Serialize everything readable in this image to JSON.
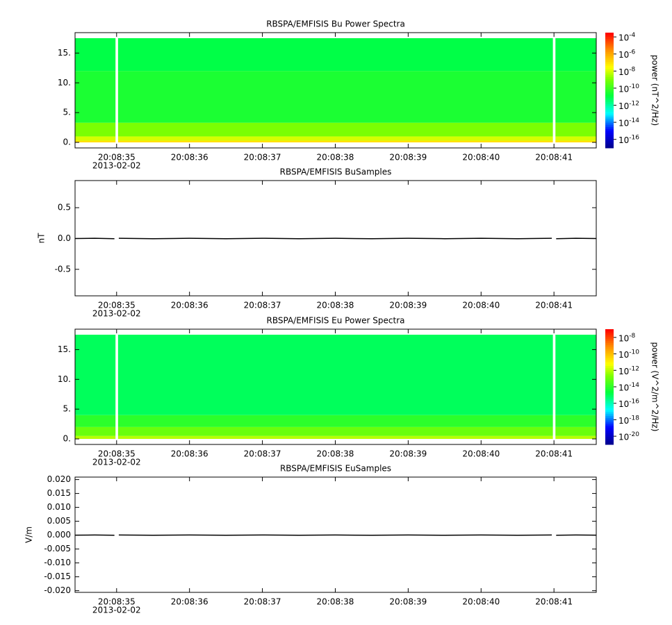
{
  "chart_data": [
    {
      "type": "spectrogram",
      "title": "RBSPA/EMFISIS  Bu Power Spectra",
      "xlim": [
        34.43,
        41.58
      ],
      "xticks": [
        {
          "value": 35,
          "label": "20:08:35"
        },
        {
          "value": 36,
          "label": "20:08:36"
        },
        {
          "value": 37,
          "label": "20:08:37"
        },
        {
          "value": 38,
          "label": "20:08:38"
        },
        {
          "value": 39,
          "label": "20:08:39"
        },
        {
          "value": 40,
          "label": "20:08:40"
        },
        {
          "value": 41,
          "label": "20:08:41"
        }
      ],
      "date_label": "2013-02-02",
      "ylim": [
        -0.93,
        18.43
      ],
      "yticks": [
        {
          "value": 0,
          "label": "0."
        },
        {
          "value": 5,
          "label": "5."
        },
        {
          "value": 10,
          "label": "10."
        },
        {
          "value": 15,
          "label": "15."
        }
      ],
      "freq_bins": [
        0,
        0.3,
        1,
        3.3,
        12,
        17.5
      ],
      "log_power": [
        -7,
        -8,
        -9,
        -10.5,
        -11
      ],
      "gaps": [
        [
          34.985,
          35.02
        ],
        [
          40.985,
          41.02
        ]
      ],
      "zlim": [
        -17,
        -3.5
      ],
      "zticks": [
        {
          "value": -4,
          "label": "10^-4"
        },
        {
          "value": -6,
          "label": "10^-6"
        },
        {
          "value": -8,
          "label": "10^-8"
        },
        {
          "value": -10,
          "label": "10^-10"
        },
        {
          "value": -12,
          "label": "10^-12"
        },
        {
          "value": -14,
          "label": "10^-14"
        },
        {
          "value": -16,
          "label": "10^-16"
        }
      ],
      "colorbar_label": "power (nT^2/Hz)"
    },
    {
      "type": "line",
      "title": "RBSPA/EMFISIS  BuSamples",
      "ylabel": "nT",
      "xlim": [
        34.43,
        41.58
      ],
      "xticks": [
        {
          "value": 35,
          "label": "20:08:35"
        },
        {
          "value": 36,
          "label": "20:08:36"
        },
        {
          "value": 37,
          "label": "20:08:37"
        },
        {
          "value": 38,
          "label": "20:08:38"
        },
        {
          "value": 39,
          "label": "20:08:39"
        },
        {
          "value": 40,
          "label": "20:08:40"
        },
        {
          "value": 41,
          "label": "20:08:41"
        }
      ],
      "date_label": "2013-02-02",
      "ylim": [
        -0.93,
        0.94
      ],
      "yticks": [
        0.5,
        {
          "value": 0,
          "label": "0.0"
        },
        -0.5
      ],
      "series": [
        {
          "color": "#000000",
          "x": [
            34.43,
            34.7,
            34.97,
            35.0,
            35.03,
            35.5,
            36,
            36.5,
            37,
            37.5,
            38,
            38.5,
            39,
            39.5,
            40,
            40.5,
            40.97,
            41.0,
            41.03,
            41.3,
            41.58
          ],
          "values": [
            0,
            0.004,
            -0.003,
            null,
            0.003,
            -0.004,
            0.003,
            -0.003,
            0.004,
            -0.003,
            0.003,
            -0.004,
            0.003,
            -0.003,
            0.004,
            -0.003,
            0.003,
            null,
            -0.003,
            0.003,
            0
          ]
        }
      ]
    },
    {
      "type": "spectrogram",
      "title": "RBSPA/EMFISIS  Eu Power Spectra",
      "xlim": [
        34.43,
        41.58
      ],
      "xticks": [
        {
          "value": 35,
          "label": "20:08:35"
        },
        {
          "value": 36,
          "label": "20:08:36"
        },
        {
          "value": 37,
          "label": "20:08:37"
        },
        {
          "value": 38,
          "label": "20:08:38"
        },
        {
          "value": 39,
          "label": "20:08:39"
        },
        {
          "value": 40,
          "label": "20:08:40"
        },
        {
          "value": 41,
          "label": "20:08:41"
        }
      ],
      "date_label": "2013-02-02",
      "ylim": [
        -0.93,
        18.43
      ],
      "yticks": [
        {
          "value": 0,
          "label": "0."
        },
        {
          "value": 5,
          "label": "5."
        },
        {
          "value": 10,
          "label": "10."
        },
        {
          "value": 15,
          "label": "15."
        }
      ],
      "freq_bins": [
        0,
        0.5,
        2,
        4,
        17.5
      ],
      "log_power": [
        -12,
        -13,
        -14,
        -15
      ],
      "gaps": [
        [
          34.985,
          35.02
        ],
        [
          40.985,
          41.02
        ]
      ],
      "zlim": [
        -21,
        -7
      ],
      "zticks": [
        {
          "value": -8,
          "label": "10^-8"
        },
        {
          "value": -10,
          "label": "10^-10"
        },
        {
          "value": -12,
          "label": "10^-12"
        },
        {
          "value": -14,
          "label": "10^-14"
        },
        {
          "value": -16,
          "label": "10^-16"
        },
        {
          "value": -18,
          "label": "10^-18"
        },
        {
          "value": -20,
          "label": "10^-20"
        }
      ],
      "colorbar_label": "power (V^2/m^2/Hz)"
    },
    {
      "type": "line",
      "title": "RBSPA/EMFISIS  EuSamples",
      "ylabel": "V/m",
      "xlim": [
        34.43,
        41.58
      ],
      "xticks": [
        {
          "value": 35,
          "label": "20:08:35"
        },
        {
          "value": 36,
          "label": "20:08:36"
        },
        {
          "value": 37,
          "label": "20:08:37"
        },
        {
          "value": 38,
          "label": "20:08:38"
        },
        {
          "value": 39,
          "label": "20:08:39"
        },
        {
          "value": 40,
          "label": "20:08:40"
        },
        {
          "value": 41,
          "label": "20:08:41"
        }
      ],
      "date_label": "2013-02-02",
      "ylim": [
        -0.0206,
        0.0209
      ],
      "yticks": [
        {
          "value": 0.02,
          "label": "0.020"
        },
        {
          "value": 0.015,
          "label": "0.015"
        },
        {
          "value": 0.01,
          "label": "0.010"
        },
        {
          "value": 0.005,
          "label": "0.005"
        },
        {
          "value": 0,
          "label": "0.000"
        },
        {
          "value": -0.005,
          "label": "-0.005"
        },
        {
          "value": -0.01,
          "label": "-0.010"
        },
        {
          "value": -0.015,
          "label": "-0.015"
        },
        {
          "value": -0.02,
          "label": "-0.020"
        }
      ],
      "series": [
        {
          "color": "#000000",
          "x": [
            34.43,
            34.7,
            34.97,
            35.0,
            35.03,
            35.5,
            36,
            36.5,
            37,
            37.5,
            38,
            38.5,
            39,
            39.5,
            40,
            40.5,
            40.97,
            41.0,
            41.03,
            41.3,
            41.58
          ],
          "values": [
            0,
            5e-05,
            -5e-05,
            null,
            5e-05,
            -5e-05,
            5e-05,
            -5e-05,
            5e-05,
            -5e-05,
            5e-05,
            -5e-05,
            5e-05,
            -5e-05,
            5e-05,
            -5e-05,
            5e-05,
            null,
            -5e-05,
            5e-05,
            0
          ]
        }
      ]
    }
  ]
}
